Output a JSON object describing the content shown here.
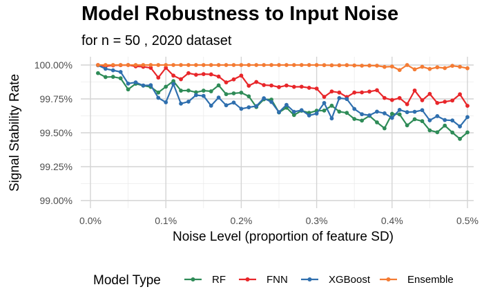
{
  "chart_data": {
    "type": "line",
    "title": "Model Robustness to Input Noise",
    "subtitle": "for n = 50 , 2020 dataset",
    "xlabel": "Noise Level (proportion of feature SD)",
    "ylabel": "Signal Stability Rate",
    "xlim": [
      0.0,
      0.005
    ],
    "ylim": [
      0.99,
      1.0
    ],
    "x_ticks": [
      0.0,
      0.001,
      0.002,
      0.003,
      0.004,
      0.005
    ],
    "x_tick_labels": [
      "0.0%",
      "0.1%",
      "0.2%",
      "0.3%",
      "0.4%",
      "0.5%"
    ],
    "y_ticks": [
      0.99,
      0.9925,
      0.995,
      0.9975,
      1.0
    ],
    "y_tick_labels": [
      "99.00%",
      "99.25%",
      "99.50%",
      "99.75%",
      "100.00%"
    ],
    "grid": true,
    "legend_title": "Model Type",
    "legend_position": "bottom",
    "x": [
      0.0001,
      0.0002,
      0.0003,
      0.0004,
      0.0005,
      0.0006,
      0.0007,
      0.0008,
      0.0009,
      0.001,
      0.0011,
      0.0012,
      0.0013,
      0.0014,
      0.0015,
      0.0016,
      0.0017,
      0.0018,
      0.0019,
      0.002,
      0.0021,
      0.0022,
      0.0023,
      0.0024,
      0.0025,
      0.0026,
      0.0027,
      0.0028,
      0.0029,
      0.003,
      0.0031,
      0.0032,
      0.0033,
      0.0034,
      0.0035,
      0.0036,
      0.0037,
      0.0038,
      0.0039,
      0.004,
      0.0041,
      0.0042,
      0.0043,
      0.0044,
      0.0045,
      0.0046,
      0.0047,
      0.0048,
      0.0049,
      0.005
    ],
    "series": [
      {
        "name": "RF",
        "color": "#2e8b57",
        "values": [
          0.9994,
          0.99911,
          0.99913,
          0.99902,
          0.9982,
          0.99862,
          0.99848,
          0.99838,
          0.99797,
          0.9984,
          0.99881,
          0.99811,
          0.99812,
          0.99799,
          0.99811,
          0.99806,
          0.9985,
          0.99785,
          0.99791,
          0.99796,
          0.99769,
          0.9969,
          0.99747,
          0.99745,
          0.9965,
          0.99685,
          0.99631,
          0.99663,
          0.99647,
          0.99663,
          0.99664,
          0.997,
          0.99656,
          0.99647,
          0.99602,
          0.9959,
          0.99625,
          0.99577,
          0.99533,
          0.9964,
          0.99636,
          0.99555,
          0.996,
          0.99586,
          0.99518,
          0.99504,
          0.99553,
          0.99502,
          0.99455,
          0.99503
        ]
      },
      {
        "name": "FNN",
        "color": "#e8262a",
        "values": [
          1.0,
          0.99991,
          0.99997,
          0.99999,
          1.0,
          0.9999,
          0.99987,
          0.99979,
          0.99907,
          0.99979,
          0.99922,
          0.99895,
          0.9994,
          0.99928,
          0.99933,
          0.99931,
          0.99915,
          0.99872,
          0.99894,
          0.99922,
          0.99847,
          0.99875,
          0.99852,
          0.99849,
          0.99837,
          0.99849,
          0.99839,
          0.9984,
          0.99832,
          0.99826,
          0.99765,
          0.99805,
          0.99797,
          0.99764,
          0.99797,
          0.99798,
          0.99804,
          0.99814,
          0.99757,
          0.99742,
          0.99756,
          0.99711,
          0.99812,
          0.9974,
          0.99787,
          0.9972,
          0.99729,
          0.99738,
          0.99784,
          0.99699
        ]
      },
      {
        "name": "XGBoost",
        "color": "#2f6fae",
        "values": [
          0.99998,
          0.99972,
          0.99961,
          0.99949,
          0.99863,
          0.99872,
          0.99849,
          0.99851,
          0.99758,
          0.99725,
          0.9986,
          0.99715,
          0.9973,
          0.99778,
          0.99772,
          0.997,
          0.9976,
          0.99703,
          0.99723,
          0.99677,
          0.99688,
          0.99697,
          0.99755,
          0.99727,
          0.99652,
          0.99706,
          0.99655,
          0.99667,
          0.99628,
          0.99642,
          0.9972,
          0.99606,
          0.99756,
          0.99749,
          0.99676,
          0.99637,
          0.99629,
          0.99656,
          0.99644,
          0.9961,
          0.99669,
          0.99652,
          0.99655,
          0.99667,
          0.99592,
          0.99623,
          0.99594,
          0.99591,
          0.99547,
          0.99616
        ]
      },
      {
        "name": "Ensemble",
        "color": "#f47b33",
        "values": [
          1.0,
          1.0,
          1.0,
          1.0,
          1.0,
          1.0,
          1.0,
          1.0,
          1.0,
          1.0,
          1.0,
          1.0,
          1.0,
          1.0,
          1.0,
          1.0,
          1.0,
          1.0,
          1.0,
          1.0,
          1.0,
          1.0,
          1.0,
          1.0,
          1.0,
          1.0,
          1.0,
          1.0,
          1.0,
          1.0,
          0.99999,
          0.99998,
          0.99998,
          0.99999,
          0.99997,
          0.99995,
          0.99996,
          0.99995,
          0.99986,
          0.99989,
          0.99963,
          1.0,
          0.99968,
          0.99987,
          0.99971,
          0.99983,
          0.99977,
          0.99994,
          0.99987,
          0.99976
        ]
      }
    ]
  }
}
